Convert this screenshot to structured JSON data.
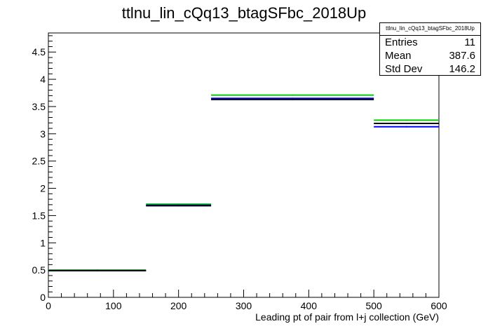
{
  "chart_data": {
    "type": "histogram",
    "title": "ttlnu_lin_cQq13_btagSFbc_2018Up",
    "xlabel": "Leading pt of pair from l+j collection (GeV)",
    "ylabel": "",
    "xlim": [
      0,
      600
    ],
    "ylim": [
      0,
      4.85
    ],
    "x_ticks": [
      0,
      100,
      200,
      300,
      400,
      500,
      600
    ],
    "y_ticks": [
      0,
      0.5,
      1,
      1.5,
      2,
      2.5,
      3,
      3.5,
      4,
      4.5
    ],
    "x_tick_labels": [
      "0",
      "100",
      "200",
      "300",
      "400",
      "500",
      "600"
    ],
    "y_tick_labels": [
      "0",
      "0.5",
      "1",
      "1.5",
      "2",
      "2.5",
      "3",
      "3.5",
      "4",
      "4.5"
    ],
    "bin_edges": [
      0,
      150,
      250,
      500,
      600
    ],
    "series": [
      {
        "color": "#00cc00",
        "values": [
          0.5,
          1.71,
          3.71,
          3.25
        ]
      },
      {
        "color": "#0000ff",
        "values": [
          0.49,
          1.69,
          3.65,
          3.13
        ]
      },
      {
        "color": "#000000",
        "values": [
          0.49,
          1.68,
          3.63,
          3.19
        ]
      }
    ]
  },
  "stats": {
    "title": "ttlnu_lin_cQq13_btagSFbc_2018Up",
    "entries_label": "Entries",
    "entries_value": "11",
    "mean_label": "Mean",
    "mean_value": "387.6",
    "stddev_label": "Std Dev",
    "stddev_value": "146.2"
  }
}
